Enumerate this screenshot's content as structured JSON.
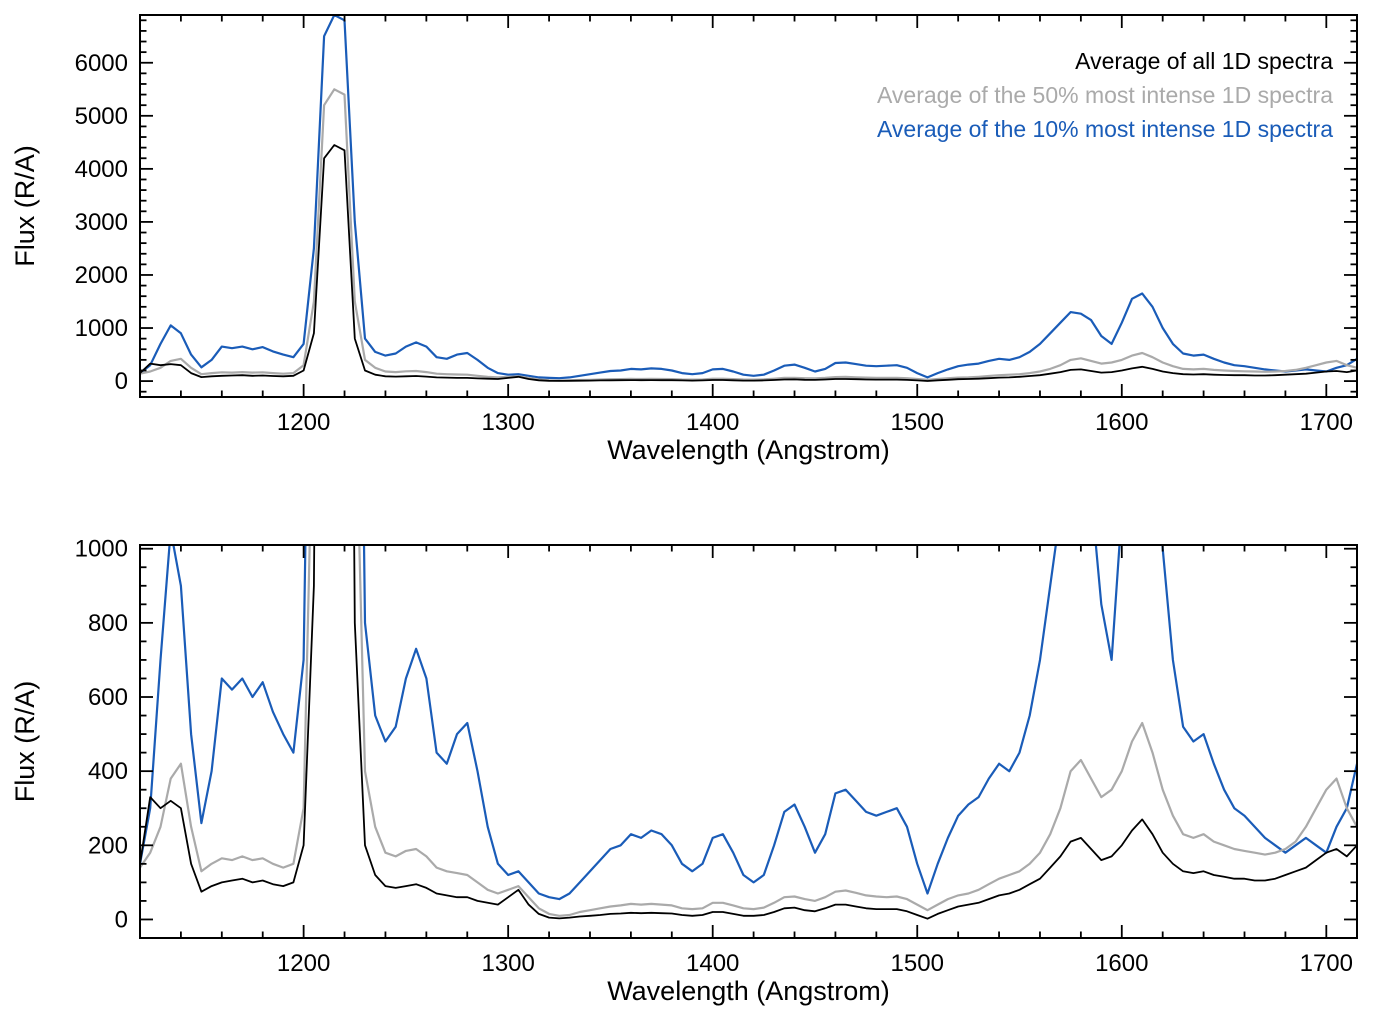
{
  "figure": {
    "background": "#ffffff",
    "frame_color": "#000000"
  },
  "legend": {
    "position": "top-right-of-first-panel",
    "entries": [
      {
        "label": "Average of all 1D spectra",
        "color": "#000000"
      },
      {
        "label": "Average of the 50% most intense 1D spectra",
        "color": "#aaaaaa"
      },
      {
        "label": "Average of the 10% most intense 1D spectra",
        "color": "#1a5cb8"
      }
    ]
  },
  "chart_data": {
    "type": "line",
    "title": "",
    "x_label": "Wavelength (Angstrom)",
    "y_label": "Flux (R/A)",
    "grid": false,
    "x": [
      1120,
      1125,
      1130,
      1135,
      1140,
      1145,
      1150,
      1155,
      1160,
      1165,
      1170,
      1175,
      1180,
      1185,
      1190,
      1195,
      1200,
      1205,
      1210,
      1215,
      1220,
      1225,
      1230,
      1235,
      1240,
      1245,
      1250,
      1255,
      1260,
      1265,
      1270,
      1275,
      1280,
      1285,
      1290,
      1295,
      1300,
      1305,
      1310,
      1315,
      1320,
      1325,
      1330,
      1335,
      1340,
      1345,
      1350,
      1355,
      1360,
      1365,
      1370,
      1375,
      1380,
      1385,
      1390,
      1395,
      1400,
      1405,
      1410,
      1415,
      1420,
      1425,
      1430,
      1435,
      1440,
      1445,
      1450,
      1455,
      1460,
      1465,
      1470,
      1475,
      1480,
      1485,
      1490,
      1495,
      1500,
      1505,
      1510,
      1515,
      1520,
      1525,
      1530,
      1535,
      1540,
      1545,
      1550,
      1555,
      1560,
      1565,
      1570,
      1575,
      1580,
      1585,
      1590,
      1595,
      1600,
      1605,
      1610,
      1615,
      1620,
      1625,
      1630,
      1635,
      1640,
      1645,
      1650,
      1655,
      1660,
      1665,
      1670,
      1675,
      1680,
      1685,
      1690,
      1695,
      1700,
      1705,
      1710,
      1715
    ],
    "series": [
      {
        "name": "Average of all 1D spectra",
        "color": "#000000",
        "width": 1.8,
        "values": [
          150,
          330,
          300,
          320,
          300,
          150,
          75,
          90,
          100,
          105,
          110,
          100,
          105,
          95,
          90,
          100,
          200,
          900,
          4200,
          4450,
          4350,
          800,
          200,
          120,
          90,
          85,
          90,
          95,
          85,
          70,
          65,
          60,
          60,
          50,
          45,
          40,
          60,
          80,
          40,
          15,
          5,
          3,
          5,
          8,
          10,
          12,
          15,
          16,
          18,
          17,
          18,
          17,
          16,
          12,
          10,
          12,
          20,
          20,
          15,
          10,
          10,
          12,
          20,
          30,
          32,
          25,
          22,
          30,
          40,
          40,
          35,
          30,
          28,
          28,
          28,
          22,
          12,
          2,
          15,
          25,
          35,
          40,
          45,
          55,
          65,
          70,
          80,
          95,
          110,
          140,
          170,
          210,
          220,
          190,
          160,
          170,
          200,
          240,
          270,
          230,
          180,
          150,
          130,
          125,
          130,
          120,
          115,
          110,
          110,
          105,
          105,
          110,
          120,
          130,
          140,
          160,
          180,
          190,
          170,
          200
        ]
      },
      {
        "name": "Average of the 50% most intense 1D spectra",
        "color": "#aaaaaa",
        "width": 2.2,
        "values": [
          140,
          180,
          250,
          380,
          420,
          250,
          130,
          150,
          165,
          160,
          170,
          160,
          165,
          150,
          140,
          150,
          300,
          1500,
          5200,
          5500,
          5400,
          1500,
          400,
          250,
          180,
          170,
          185,
          190,
          170,
          140,
          130,
          125,
          120,
          100,
          80,
          70,
          80,
          90,
          60,
          30,
          15,
          10,
          12,
          20,
          25,
          30,
          35,
          38,
          42,
          40,
          42,
          40,
          38,
          30,
          28,
          30,
          45,
          45,
          38,
          30,
          28,
          32,
          45,
          60,
          62,
          55,
          50,
          60,
          75,
          78,
          72,
          65,
          62,
          60,
          62,
          55,
          40,
          25,
          40,
          55,
          65,
          70,
          80,
          95,
          110,
          120,
          130,
          150,
          180,
          230,
          300,
          400,
          430,
          380,
          330,
          350,
          400,
          480,
          530,
          450,
          350,
          280,
          230,
          220,
          230,
          210,
          200,
          190,
          185,
          180,
          175,
          180,
          190,
          210,
          250,
          300,
          350,
          380,
          300,
          250
        ]
      },
      {
        "name": "Average of the 10% most intense 1D spectra",
        "color": "#1a5cb8",
        "width": 2.2,
        "values": [
          150,
          300,
          700,
          1050,
          900,
          500,
          260,
          400,
          650,
          620,
          650,
          600,
          640,
          560,
          500,
          450,
          700,
          2500,
          6500,
          6900,
          6800,
          3000,
          800,
          550,
          480,
          520,
          650,
          730,
          650,
          450,
          420,
          500,
          530,
          400,
          250,
          150,
          120,
          130,
          100,
          70,
          60,
          55,
          70,
          100,
          130,
          160,
          190,
          200,
          230,
          220,
          240,
          230,
          200,
          150,
          130,
          150,
          220,
          230,
          180,
          120,
          100,
          120,
          200,
          290,
          310,
          250,
          180,
          230,
          340,
          350,
          320,
          290,
          280,
          290,
          300,
          250,
          150,
          70,
          150,
          220,
          280,
          310,
          330,
          380,
          420,
          400,
          450,
          550,
          700,
          900,
          1100,
          1300,
          1270,
          1150,
          850,
          700,
          1100,
          1550,
          1650,
          1400,
          1000,
          700,
          520,
          480,
          500,
          420,
          350,
          300,
          280,
          250,
          220,
          200,
          180,
          200,
          220,
          200,
          180,
          250,
          300,
          420
        ]
      }
    ],
    "panels": [
      {
        "name": "full-range",
        "xlim": [
          1120,
          1715
        ],
        "ylim": [
          -300,
          6900
        ],
        "xticks": [
          1200,
          1300,
          1400,
          1500,
          1600,
          1700
        ],
        "yticks": [
          0,
          1000,
          2000,
          3000,
          4000,
          5000,
          6000
        ],
        "x_minor_step": 20,
        "y_minor_step": 200,
        "legend": true
      },
      {
        "name": "zoomed",
        "xlim": [
          1120,
          1715
        ],
        "ylim": [
          -50,
          1010
        ],
        "xticks": [
          1200,
          1300,
          1400,
          1500,
          1600,
          1700
        ],
        "yticks": [
          0,
          200,
          400,
          600,
          800,
          1000
        ],
        "x_minor_step": 20,
        "y_minor_step": 50,
        "legend": false
      }
    ]
  }
}
